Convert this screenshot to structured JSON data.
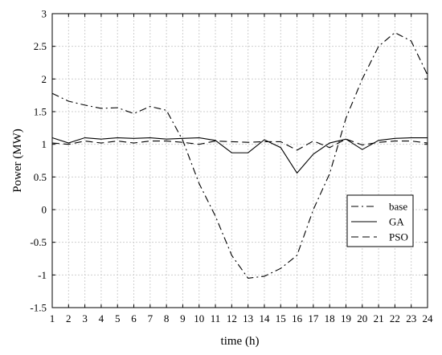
{
  "chart_data": {
    "type": "line",
    "title": "",
    "xlabel": "time (h)",
    "ylabel": "Power (MW)",
    "xlim": [
      1,
      24
    ],
    "ylim": [
      -1.5,
      3
    ],
    "x": [
      1,
      2,
      3,
      4,
      5,
      6,
      7,
      8,
      9,
      10,
      11,
      12,
      13,
      14,
      15,
      16,
      17,
      18,
      19,
      20,
      21,
      22,
      23,
      24
    ],
    "x_ticks": [
      "1",
      "2",
      "3",
      "4",
      "5",
      "6",
      "7",
      "8",
      "9",
      "10",
      "11",
      "12",
      "13",
      "14",
      "15",
      "16",
      "17",
      "18",
      "19",
      "20",
      "21",
      "22",
      "23",
      "24"
    ],
    "y_ticks": [
      {
        "value": 3,
        "label": "3"
      },
      {
        "value": 2.5,
        "label": "2.5"
      },
      {
        "value": 2,
        "label": "2"
      },
      {
        "value": 1.5,
        "label": "1.5"
      },
      {
        "value": 1,
        "label": "1"
      },
      {
        "value": 0.5,
        "label": "0.5"
      },
      {
        "value": 0,
        "label": "0"
      },
      {
        "value": -0.5,
        "label": "-0.5"
      },
      {
        "value": -1,
        "label": "-1"
      },
      {
        "value": -1.5,
        "label": "-1.5"
      }
    ],
    "grid": true,
    "legend_position": "center-right",
    "series": [
      {
        "name": "base",
        "dash": "dashdot",
        "color": "#000000",
        "values": [
          1.78,
          1.66,
          1.6,
          1.55,
          1.56,
          1.47,
          1.58,
          1.52,
          1.06,
          0.4,
          -0.1,
          -0.7,
          -1.05,
          -1.02,
          -0.9,
          -0.7,
          0.0,
          0.55,
          1.4,
          2.0,
          2.5,
          2.71,
          2.58,
          2.06
        ]
      },
      {
        "name": "GA",
        "dash": "solid",
        "color": "#000000",
        "values": [
          1.1,
          1.02,
          1.1,
          1.08,
          1.1,
          1.09,
          1.1,
          1.08,
          1.09,
          1.1,
          1.06,
          0.87,
          0.87,
          1.07,
          0.95,
          0.56,
          0.85,
          1.02,
          1.08,
          0.92,
          1.06,
          1.09,
          1.1,
          1.1
        ]
      },
      {
        "name": "PSO",
        "dash": "dashed",
        "color": "#000000",
        "values": [
          1.02,
          1.0,
          1.05,
          1.02,
          1.05,
          1.02,
          1.05,
          1.05,
          1.03,
          1.0,
          1.05,
          1.04,
          1.03,
          1.04,
          1.04,
          0.91,
          1.05,
          0.95,
          1.08,
          0.99,
          1.03,
          1.05,
          1.05,
          1.02
        ]
      }
    ]
  }
}
